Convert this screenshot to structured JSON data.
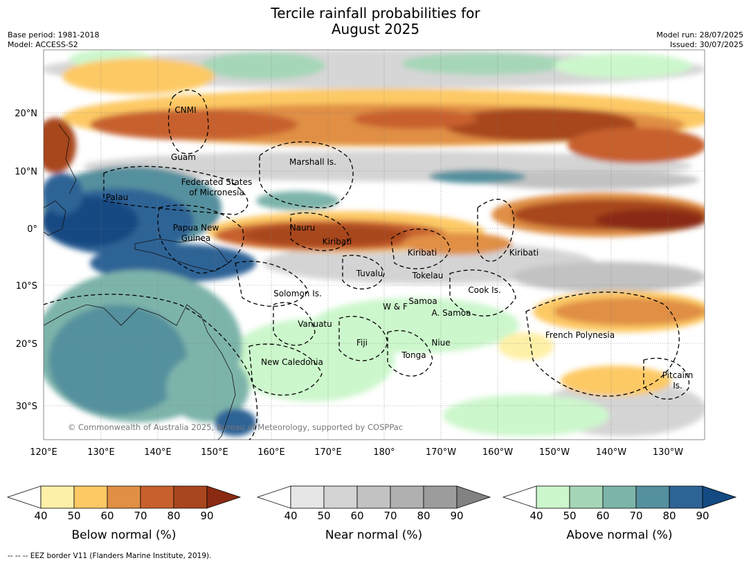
{
  "header": {
    "title_line1": "Tercile rainfall probabilities for",
    "title_line2": "August 2025",
    "base_period": "Base period: 1981-2018",
    "model": "Model: ACCESS-S2",
    "model_run": "Model run: 28/07/2025",
    "issued": "Issued: 30/07/2025"
  },
  "map": {
    "lon_ticks": [
      "120°E",
      "130°E",
      "140°E",
      "150°E",
      "160°E",
      "170°E",
      "180°",
      "170°W",
      "160°W",
      "150°W",
      "140°W",
      "130°W"
    ],
    "lat_ticks": [
      "20°N",
      "10°N",
      "0°",
      "10°S",
      "20°S",
      "30°S"
    ],
    "copyright": "© Commonwealth of Australia 2025, Bureau of Meteorology, supported by COSPPac",
    "region_labels": [
      "CNMI",
      "Guam",
      "Marshall Is.",
      "Federated States",
      "of Micronesia",
      "Palau",
      "Papua New",
      "Guinea",
      "Nauru",
      "Kiribati",
      "Kiribati",
      "Kiribati",
      "Tuvalu",
      "Tokelau",
      "Solomon Is.",
      "Cook Is.",
      "Samoa",
      "W & F",
      "A. Samoa",
      "Vanuatu",
      "Fiji",
      "Niue",
      "Tonga",
      "New Caledonia",
      "French Polynesia",
      "Pitcairn",
      "Is."
    ]
  },
  "legends": [
    {
      "label": "Below normal (%)",
      "ticks": [
        "40",
        "50",
        "60",
        "70",
        "80",
        "90"
      ],
      "colors": [
        "#ffffff",
        "#fff0a8",
        "#fdc965",
        "#e08f44",
        "#c8602e",
        "#a8461f",
        "#8a2a12"
      ]
    },
    {
      "label": "Near normal (%)",
      "ticks": [
        "40",
        "50",
        "60",
        "70",
        "80",
        "90"
      ],
      "colors": [
        "#ffffff",
        "#e6e6e6",
        "#d4d4d4",
        "#c2c2c2",
        "#b0b0b0",
        "#9c9c9c",
        "#828282"
      ]
    },
    {
      "label": "Above normal (%)",
      "ticks": [
        "40",
        "50",
        "60",
        "70",
        "80",
        "90"
      ],
      "colors": [
        "#ffffff",
        "#ccf7cc",
        "#a6d6b8",
        "#7db4aa",
        "#55909e",
        "#2e6396",
        "#134a82"
      ]
    }
  ],
  "footnote": "-- -- -- EEZ border V11 (Flanders Marine Institute, 2019)."
}
